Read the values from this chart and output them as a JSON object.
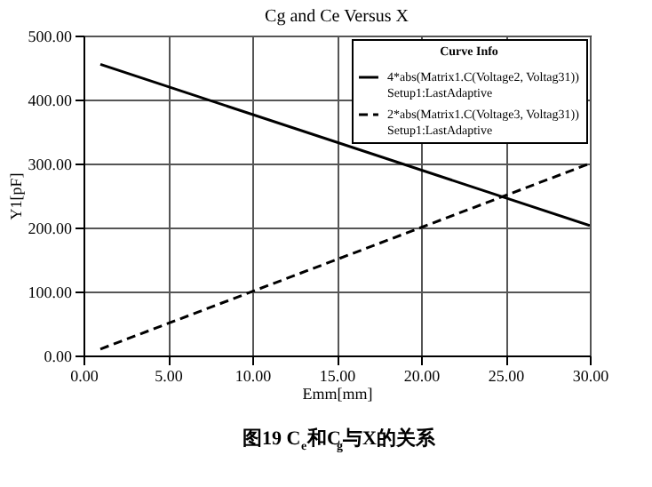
{
  "chart_data": {
    "type": "line",
    "title": "Cg and Ce Versus X",
    "xlabel": "Emm[mm]",
    "ylabel": "Y1[pF]",
    "legend_title": "Curve Info",
    "legend": "top right",
    "grid": true,
    "xlim": [
      0,
      30
    ],
    "xticks": [
      {
        "value": 0,
        "label": "0.00"
      },
      {
        "value": 5,
        "label": "5.00"
      },
      {
        "value": 10,
        "label": "10.00"
      },
      {
        "value": 15,
        "label": "15.00"
      },
      {
        "value": 20,
        "label": "20.00"
      },
      {
        "value": 25,
        "label": "25.00"
      },
      {
        "value": 30,
        "label": "30.00"
      }
    ],
    "ylim": [
      0,
      500
    ],
    "yticks": [
      {
        "value": 0,
        "label": "0.00"
      },
      {
        "value": 100,
        "label": "100.00"
      },
      {
        "value": 200,
        "label": "200.00"
      },
      {
        "value": 300,
        "label": "300.00"
      },
      {
        "value": 400,
        "label": "400.00"
      },
      {
        "value": 500,
        "label": "500.00"
      }
    ],
    "x": [
      1,
      30
    ],
    "series": [
      {
        "name": "4*abs(Matrix1.C(Voltage2, Voltag31))\nSetup1:LastAdaptive",
        "color": "#000000",
        "line_style": "solid",
        "values": [
          455,
          203
        ]
      },
      {
        "name": "2*abs(Matrix1.C(Voltage3, Voltag31))\nSetup1:LastAdaptive",
        "color": "#000000",
        "line_style": "dashed",
        "values": [
          10,
          300
        ]
      }
    ],
    "annotations": [
      "图19 C$_{e}$和C$_{g}$与X的关系"
    ]
  }
}
